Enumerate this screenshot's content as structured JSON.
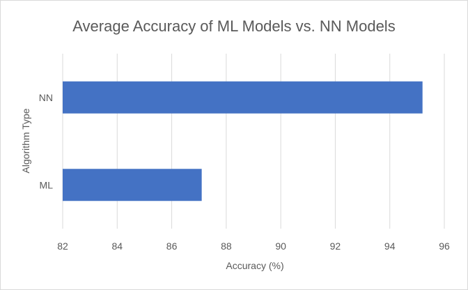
{
  "chart_data": {
    "type": "bar",
    "orientation": "horizontal",
    "title": "Average Accuracy of ML Models vs. NN Models",
    "xlabel": "Accuracy (%)",
    "ylabel": "Algorithm Type",
    "categories": [
      "NN",
      "ML"
    ],
    "values": [
      95.2,
      87.1
    ],
    "xlim": [
      82,
      96
    ],
    "xticks": [
      "82",
      "84",
      "86",
      "88",
      "90",
      "92",
      "94",
      "96"
    ],
    "grid": "vertical",
    "bar_color": "#4472c4",
    "grid_color": "#d9d9d9",
    "text_color": "#595959"
  }
}
